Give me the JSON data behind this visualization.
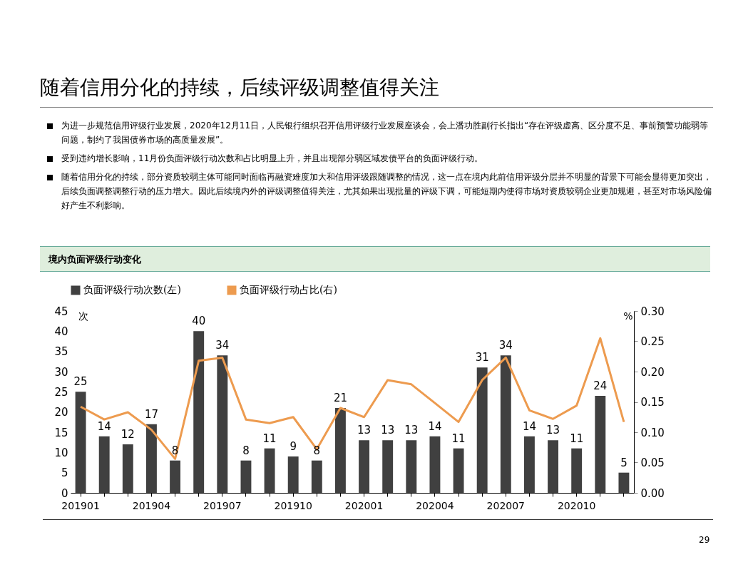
{
  "chart_data": {
    "type": "bar",
    "title": "随着信用分化的持续，后续评级调整值得关注",
    "subtitle": "境内负面评级行动变化",
    "annotations": [
      "为进一步规范信用评级行业发展，2020年12月11日，人民银行组织召开信用评级行业发展座谈会，会上潘功胜副行长指出“存在评级虚高、区分度不足、事前预警功能弱等问题，制约了我国债券市场的高质量发展”。",
      "受到违约增长影响，11月份负面评级行动次数和占比明显上升，并且出现部分弱区域发债平台的负面评级行动。",
      "随着信用分化的持续，部分资质较弱主体可能同时面临再融资难度加大和信用评级跟随调整的情况，这一点在境内此前信用评级分层并不明显的背景下可能会显得更加突出，后续负面调整调整行动的压力增大。因此后续境内外的评级调整值得关注，尤其如果出现批量的评级下调，可能短期内使得市场对资质较弱企业更加规避，甚至对市场风险偏好产生不利影响。",
      "29"
    ],
    "ylabel": "次",
    "y2label": "%",
    "categories": [
      "201901",
      null,
      null,
      "201904",
      null,
      null,
      "201907",
      null,
      null,
      "201910",
      null,
      null,
      "202001",
      null,
      null,
      "202004",
      null,
      null,
      "202007",
      null,
      null,
      "202010",
      null,
      null
    ],
    "series": [
      {
        "name": "负面评级行动次数(左)",
        "color": "#404040",
        "values": [
          25,
          14,
          12,
          17,
          8,
          40,
          34,
          8,
          11,
          9,
          8,
          21,
          13,
          13,
          13,
          14,
          11,
          31,
          34,
          14,
          13,
          11,
          24,
          5
        ],
        "value_labels": [
          "25",
          "14",
          "12",
          "17",
          "8",
          "40",
          "34",
          "8",
          "11",
          "9",
          "8",
          "21",
          "13",
          "13",
          "13",
          "14",
          "11",
          "31",
          "34",
          "14",
          "13",
          "11",
          "24",
          "5"
        ]
      },
      {
        "name": "负面评级行动占比(右)",
        "type": "line",
        "axis": "y2",
        "color": "#ed9b4f",
        "values": [
          0.142,
          0.121,
          0.133,
          0.104,
          0.056,
          0.218,
          0.223,
          0.121,
          0.115,
          0.125,
          0.072,
          0.14,
          0.125,
          0.186,
          0.179,
          0.148,
          0.117,
          0.186,
          0.223,
          0.136,
          0.122,
          0.144,
          0.255,
          0.117
        ]
      }
    ],
    "ylim": [
      0,
      45
    ],
    "yticks": [
      0,
      5,
      10,
      15,
      20,
      25,
      30,
      35,
      40,
      45
    ],
    "y2lim": [
      0,
      0.3
    ],
    "y2ticks": [
      {
        "value": 0,
        "label": "0.00"
      },
      {
        "value": 0.05,
        "label": "0.05"
      },
      {
        "value": 0.1,
        "label": "0.10"
      },
      {
        "value": 0.15,
        "label": "0.15"
      },
      {
        "value": 0.2,
        "label": "0.20"
      },
      {
        "value": 0.25,
        "label": "0.25"
      },
      {
        "value": 0.3,
        "label": "0.30"
      }
    ],
    "grid": false,
    "legend": "top",
    "line_style": "solid",
    "marker": "none"
  }
}
